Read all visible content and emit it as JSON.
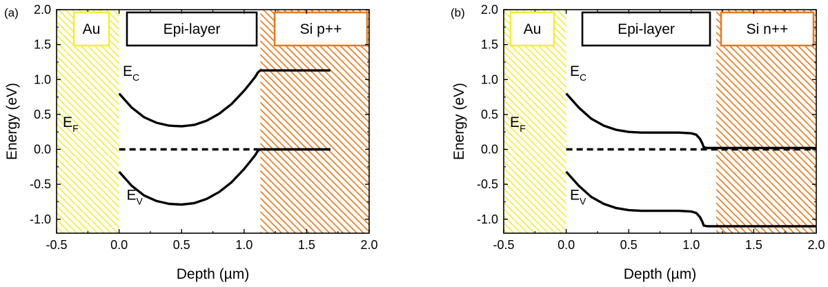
{
  "chart_data": [
    {
      "type": "line",
      "panel_label": "(a)",
      "xlabel": "Depth (µm)",
      "ylabel": "Energy (eV)",
      "xlim": [
        -0.5,
        2.0
      ],
      "ylim": [
        -1.2,
        2.0
      ],
      "x_ticks": [
        "-0.5",
        "0.0",
        "0.5",
        "1.0",
        "1.5",
        "2.0"
      ],
      "y_ticks": [
        "-1.0",
        "-0.5",
        "0.0",
        "0.5",
        "1.0",
        "1.5",
        "2.0"
      ],
      "regions": [
        {
          "label": "Au",
          "x_range": [
            -0.5,
            0.0
          ],
          "color": "#f2ee3a",
          "hatch": "diagonal"
        },
        {
          "label": "Epi-layer",
          "x_range": [
            0.0,
            1.13
          ],
          "color": "#ffffff",
          "hatch": "none"
        },
        {
          "label": "Si p++",
          "x_range": [
            1.13,
            2.0
          ],
          "color": "#e87a1e",
          "hatch": "diagonal"
        }
      ],
      "labels": {
        "ec": "E",
        "ec_sub": "C",
        "ev": "E",
        "ev_sub": "V",
        "ef": "E",
        "ef_sub": "F"
      },
      "series": [
        {
          "role": "Ec",
          "style": "solid",
          "x": [
            0.0,
            0.1,
            0.2,
            0.3,
            0.4,
            0.5,
            0.6,
            0.7,
            0.8,
            0.9,
            1.0,
            1.05,
            1.09,
            1.11,
            1.13,
            1.69
          ],
          "y": [
            0.8,
            0.6,
            0.46,
            0.38,
            0.34,
            0.33,
            0.35,
            0.41,
            0.51,
            0.65,
            0.84,
            0.95,
            1.04,
            1.1,
            1.13,
            1.13
          ]
        },
        {
          "role": "Ev",
          "style": "solid",
          "x": [
            0.0,
            0.1,
            0.2,
            0.3,
            0.4,
            0.5,
            0.6,
            0.7,
            0.8,
            0.9,
            1.0,
            1.05,
            1.09,
            1.11,
            1.13,
            1.69
          ],
          "y": [
            -0.32,
            -0.52,
            -0.66,
            -0.74,
            -0.78,
            -0.79,
            -0.77,
            -0.71,
            -0.61,
            -0.47,
            -0.28,
            -0.17,
            -0.08,
            -0.02,
            0.0,
            0.0
          ]
        },
        {
          "role": "EF",
          "style": "dashed",
          "x": [
            0.0,
            1.69
          ],
          "y": [
            0.0,
            0.0
          ]
        }
      ]
    },
    {
      "type": "line",
      "panel_label": "(b)",
      "xlabel": "Depth (µm)",
      "ylabel": "Energy (eV)",
      "xlim": [
        -0.5,
        2.0
      ],
      "ylim": [
        -1.2,
        2.0
      ],
      "x_ticks": [
        "-0.5",
        "0.0",
        "0.5",
        "1.0",
        "1.5",
        "2.0"
      ],
      "y_ticks": [
        "-1.0",
        "-0.5",
        "0.0",
        "0.5",
        "1.0",
        "1.5",
        "2.0"
      ],
      "regions": [
        {
          "label": "Au",
          "x_range": [
            -0.5,
            0.0
          ],
          "color": "#f2ee3a",
          "hatch": "diagonal"
        },
        {
          "label": "Epi-layer",
          "x_range": [
            0.0,
            1.2
          ],
          "color": "#ffffff",
          "hatch": "none"
        },
        {
          "label": "Si n++",
          "x_range": [
            1.2,
            2.0
          ],
          "color": "#e87a1e",
          "hatch": "diagonal"
        }
      ],
      "labels": {
        "ec": "E",
        "ec_sub": "C",
        "ev": "E",
        "ev_sub": "V",
        "ef": "E",
        "ef_sub": "F"
      },
      "series": [
        {
          "role": "Ec",
          "style": "solid",
          "x": [
            0.0,
            0.1,
            0.2,
            0.3,
            0.4,
            0.5,
            0.6,
            0.7,
            0.8,
            0.9,
            1.0,
            1.04,
            1.07,
            1.09,
            1.1,
            1.13,
            2.0
          ],
          "y": [
            0.8,
            0.6,
            0.44,
            0.34,
            0.28,
            0.25,
            0.24,
            0.24,
            0.24,
            0.24,
            0.23,
            0.21,
            0.15,
            0.08,
            0.03,
            0.02,
            0.02
          ]
        },
        {
          "role": "Ev",
          "style": "solid",
          "x": [
            0.0,
            0.1,
            0.2,
            0.3,
            0.4,
            0.5,
            0.6,
            0.7,
            0.8,
            0.9,
            1.0,
            1.04,
            1.07,
            1.09,
            1.1,
            1.13,
            2.0
          ],
          "y": [
            -0.32,
            -0.52,
            -0.68,
            -0.78,
            -0.84,
            -0.87,
            -0.88,
            -0.88,
            -0.88,
            -0.88,
            -0.89,
            -0.91,
            -0.97,
            -1.04,
            -1.09,
            -1.1,
            -1.1
          ]
        },
        {
          "role": "EF",
          "style": "dashed",
          "x": [
            0.0,
            2.0
          ],
          "y": [
            0.0,
            0.0
          ]
        }
      ]
    }
  ]
}
